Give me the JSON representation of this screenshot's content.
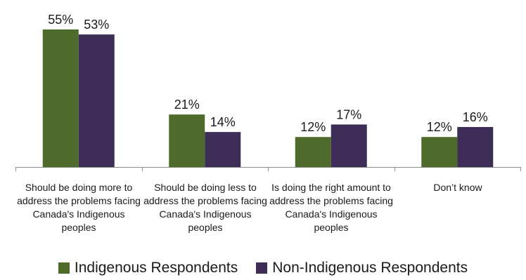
{
  "chart_data": {
    "type": "bar",
    "categories": [
      "Should be doing more to address the problems facing Canada's Indigenous peoples",
      "Should be doing less to address the problems facing Canada's Indigenous peoples",
      "Is doing the right amount to address the problems facing Canada's Indigenous peoples",
      "Don’t know"
    ],
    "series": [
      {
        "name": "Indigenous Respondents",
        "values": [
          55,
          21,
          12,
          12
        ],
        "labels": [
          "55%",
          "21%",
          "12%",
          "12%"
        ],
        "color": "#4e6b2c"
      },
      {
        "name": "Non-Indigenous Respondents",
        "values": [
          53,
          14,
          17,
          16
        ],
        "labels": [
          "53%",
          "14%",
          "17%",
          "16%"
        ],
        "color": "#3d2d57"
      }
    ],
    "unit": "%",
    "ylim": [
      0,
      60
    ],
    "legend": "bottom",
    "grid": false
  }
}
